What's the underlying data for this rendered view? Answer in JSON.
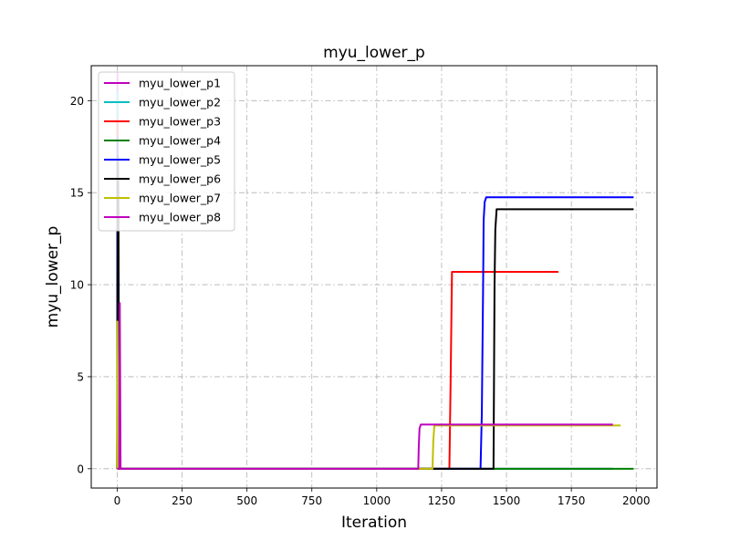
{
  "chart_data": {
    "type": "line",
    "title": "myu_lower_p",
    "xlabel": "Iteration",
    "ylabel": "myu_lower_p",
    "xlim": [
      -100,
      2080
    ],
    "ylim": [
      -1.05,
      21.9
    ],
    "xticks": [
      0,
      250,
      500,
      750,
      1000,
      1250,
      1500,
      1750,
      2000
    ],
    "yticks": [
      0,
      5,
      10,
      15,
      20
    ],
    "grid": true,
    "grid_style": "dashdot",
    "legend_position": "upper-left",
    "series": [
      {
        "name": "myu_lower_p1",
        "color": "#bf00bf",
        "points": [
          [
            0,
            0
          ],
          [
            1,
            21.5
          ],
          [
            3,
            0
          ],
          [
            8,
            0
          ],
          [
            1910,
            0
          ]
        ]
      },
      {
        "name": "myu_lower_p2",
        "color": "#00bfbf",
        "points": [
          [
            0,
            0
          ],
          [
            1,
            20.5
          ],
          [
            3,
            0
          ],
          [
            1910,
            0
          ]
        ]
      },
      {
        "name": "myu_lower_p3",
        "color": "#ff0000",
        "points": [
          [
            0,
            0
          ],
          [
            1,
            19.0
          ],
          [
            4,
            0
          ],
          [
            1280,
            0
          ],
          [
            1285,
            5
          ],
          [
            1290,
            10.7
          ],
          [
            1700,
            10.7
          ]
        ]
      },
      {
        "name": "myu_lower_p4",
        "color": "#008000",
        "points": [
          [
            0,
            0
          ],
          [
            1,
            17.0
          ],
          [
            4,
            0
          ],
          [
            1990,
            0
          ]
        ]
      },
      {
        "name": "myu_lower_p5",
        "color": "#0000ff",
        "points": [
          [
            0,
            0
          ],
          [
            1,
            18.0
          ],
          [
            4,
            0
          ],
          [
            1400,
            0
          ],
          [
            1405,
            3
          ],
          [
            1410,
            10
          ],
          [
            1412,
            13.5
          ],
          [
            1416,
            14.5
          ],
          [
            1422,
            14.75
          ],
          [
            1990,
            14.75
          ]
        ]
      },
      {
        "name": "myu_lower_p6",
        "color": "#000000",
        "points": [
          [
            0,
            0
          ],
          [
            1,
            7.9
          ],
          [
            3,
            17.0
          ],
          [
            5,
            13.5
          ],
          [
            7,
            0
          ],
          [
            1450,
            0
          ],
          [
            1454,
            10
          ],
          [
            1457,
            13
          ],
          [
            1462,
            14.1
          ],
          [
            1990,
            14.1
          ]
        ]
      },
      {
        "name": "myu_lower_p7",
        "color": "#bfbf00",
        "points": [
          [
            0,
            0
          ],
          [
            1,
            8.0
          ],
          [
            4,
            0
          ],
          [
            1215,
            0
          ],
          [
            1218,
            1.5
          ],
          [
            1222,
            2.35
          ],
          [
            1940,
            2.35
          ]
        ]
      },
      {
        "name": "myu_lower_p8",
        "color": "#bf00bf",
        "points": [
          [
            0,
            0
          ],
          [
            8,
            0
          ],
          [
            10,
            9.0
          ],
          [
            13,
            0
          ],
          [
            1160,
            0
          ],
          [
            1162,
            1.2
          ],
          [
            1165,
            2.2
          ],
          [
            1170,
            2.4
          ],
          [
            1910,
            2.4
          ]
        ]
      }
    ]
  }
}
